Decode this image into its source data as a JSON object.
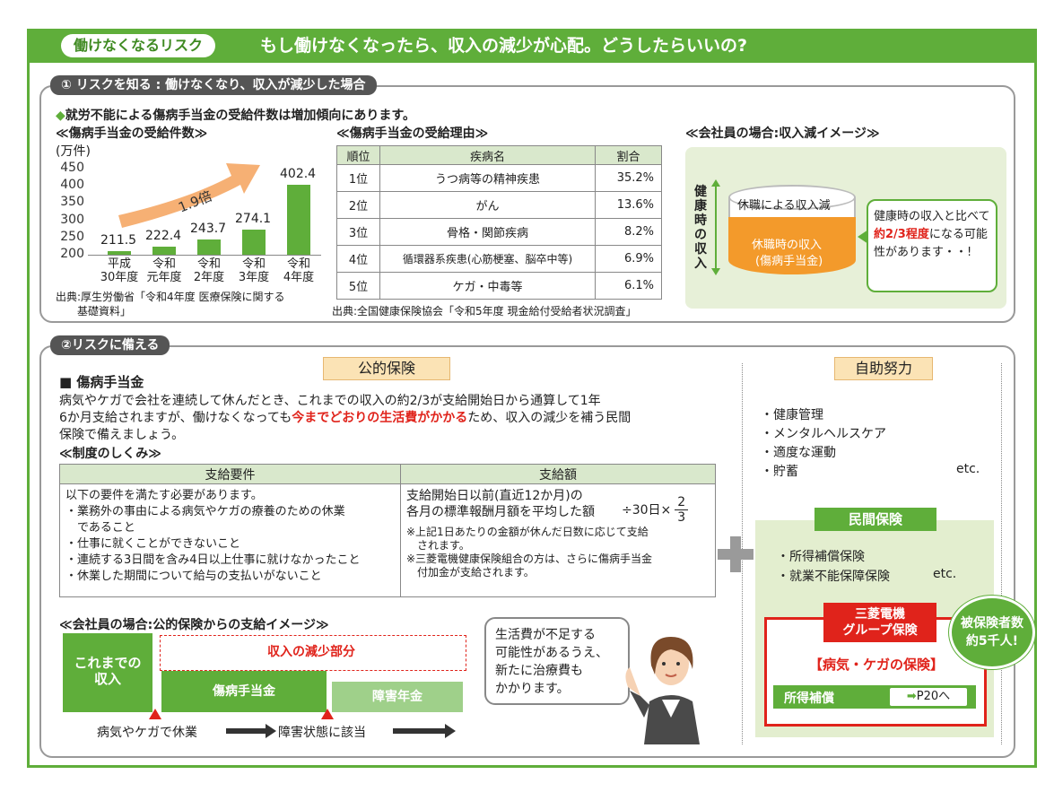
{
  "header": {
    "pill": "働けなくなるリスク",
    "headline": "もし働けなくなったら、収入の減少が心配。どうしたらいいの?"
  },
  "section1": {
    "tab": "① リスクを知る : 働けなくなり、収入が減少した場合",
    "lead": "就労不能による傷病手当金の受給件数は増加傾向にあります。",
    "chart_title": "≪傷病手当金の受給件数≫",
    "table_title": "≪傷病手当金の受給理由≫",
    "image_title": "≪会社員の場合:収入減イメージ≫",
    "source1_line1": "出典:厚生労働省「令和4年度 医療保険に関する",
    "source1_line2": "基礎資料」",
    "source2": "出典:全国健康保険協会「令和5年度 現金給付受給者状況調査」"
  },
  "chart_data": {
    "type": "bar",
    "ylabel": "(万件)",
    "yticks": [
      450,
      400,
      350,
      300,
      250,
      200
    ],
    "ylim": [
      200,
      450
    ],
    "categories": [
      "平成30年度",
      "令和元年度",
      "令和2年度",
      "令和3年度",
      "令和4年度"
    ],
    "category_lines": [
      [
        "平成",
        "30年度"
      ],
      [
        "令和",
        "元年度"
      ],
      [
        "令和",
        "2年度"
      ],
      [
        "令和",
        "3年度"
      ],
      [
        "令和",
        "4年度"
      ]
    ],
    "values": [
      211.5,
      222.4,
      243.7,
      274.1,
      402.4
    ],
    "value_labels": [
      "211.5",
      "222.4",
      "243.7",
      "274.1",
      "402.4"
    ],
    "annotation": "1.9倍",
    "bar_color": "#5fae3a",
    "arrow_color": "#f6b074"
  },
  "reason_table": {
    "headers": [
      "順位",
      "疾病名",
      "割合"
    ],
    "rows": [
      [
        "1位",
        "うつ病等の精神疾患",
        "35.2%"
      ],
      [
        "2位",
        "がん",
        "13.6%"
      ],
      [
        "3位",
        "骨格・関節疾病",
        "8.2%"
      ],
      [
        "4位",
        "循環器系疾患(心筋梗塞、脳卒中等)",
        "6.9%"
      ],
      [
        "5位",
        "ケガ・中毒等",
        "6.1%"
      ]
    ]
  },
  "income_image": {
    "side_label": "健康時の収入",
    "top_label": "休職による収入減",
    "body_label1": "休職時の収入",
    "body_label2": "(傷病手当金)",
    "bubble_pre": "健康時の収入と比べて",
    "bubble_red": "約2/3程度",
    "bubble_post": "になる可能性があります・・!"
  },
  "section2": {
    "tab": "②リスクに備える",
    "public_header": "公的保険",
    "self_header": "自助努力",
    "benefit_title": "■ 傷病手当金",
    "benefit_line1": "病気やケガで会社を連続して休んだとき、これまでの収入の約2/3が支給開始日から通算して1年",
    "benefit_line2_pre": "6か月支給されますが、働けなくなっても",
    "benefit_line2_red": "今までどおりの生活費がかかる",
    "benefit_line2_post": "ため、収入の減少を補う民間",
    "benefit_line3": "保険で備えましょう。",
    "system_title": "≪制度のしくみ≫",
    "req_headers": [
      "支給要件",
      "支給額"
    ],
    "req_intro": "以下の要件を満たす必要があります。",
    "req_items": [
      "・業務外の事由による病気やケガの療養のための休業",
      "　であること",
      "・仕事に就くことができないこと",
      "・連続する3日間を含み4日以上仕事に就けなかったこと",
      "・休業した期間について給与の支払いがないこと"
    ],
    "amount_line1": "支給開始日以前(直近12か月)の",
    "amount_line2": "各月の標準報酬月額を平均した額",
    "amount_formula": "÷30日×",
    "amount_num": "2",
    "amount_den": "3",
    "amount_note1": "※上記1日あたりの金額が休んだ日数に応じて支給",
    "amount_note1b": "　されます。",
    "amount_note2": "※三菱電機健康保険組合の方は、さらに傷病手当金",
    "amount_note2b": "　付加金が支給されます。",
    "image_title": "≪会社員の場合:公的保険からの支給イメージ≫",
    "prior_income1": "これまでの",
    "prior_income2": "収入",
    "decrease": "収入の減少部分",
    "sickness_benefit": "傷病手当金",
    "disability_pension": "障害年金",
    "event1": "病気やケガで休業",
    "event2": "障害状態に該当",
    "speech": [
      "生活費が不足する",
      "可能性があるうえ、",
      "新たに治療費も",
      "かかります。"
    ],
    "self_items": [
      "・健康管理",
      "・メンタルヘルスケア",
      "・適度な運動",
      "・貯蓄"
    ],
    "self_etc": "etc.",
    "private_header": "民間保険",
    "private_items": [
      "・所得補償保険",
      "・就業不能保障保険"
    ],
    "private_etc": "etc.",
    "group_title1": "三菱電機",
    "group_title2": "グループ保険",
    "group_sub": "【病気・ケガの保険】",
    "income_comp": "所得補償",
    "page_ref": "P20へ",
    "badge1": "被保険者数",
    "badge2": "約5千人!"
  }
}
